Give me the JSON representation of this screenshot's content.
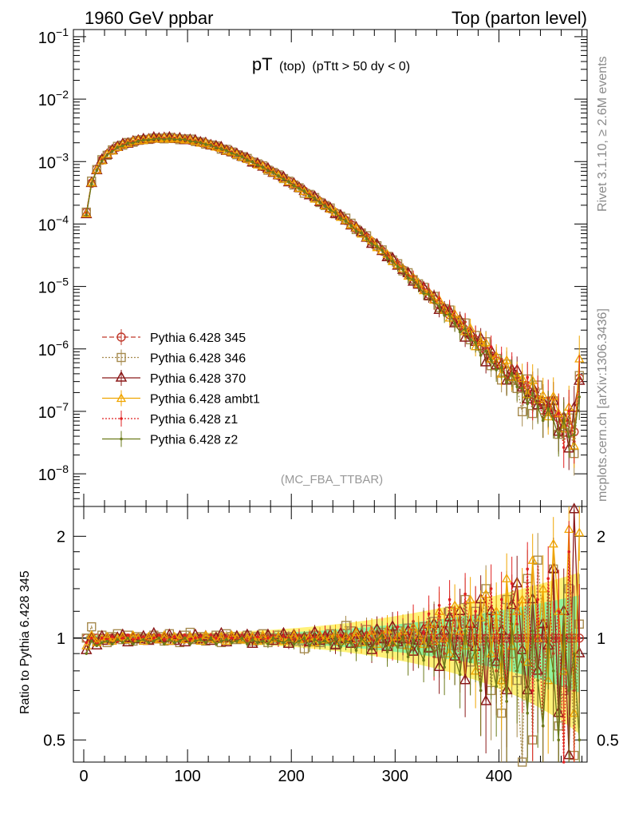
{
  "header": {
    "left": "1960 GeV ppbar",
    "right": "Top (parton level)"
  },
  "plot_title": {
    "main": "pT",
    "paren": "(top)",
    "cut": "(pTtt > 50 dy < 0)"
  },
  "watermark": "(MC_FBA_TTBAR)",
  "side_labels": {
    "top": "Rivet 3.1.10, ≥ 2.6M events",
    "bottom": "mcplots.cern.ch [arXiv:1306.3436]"
  },
  "ratio_ylabel": "Ratio to Pythia 6.428 345",
  "colors": {
    "c345": "#c0392b",
    "c346": "#a68a4e",
    "c370": "#8b1a1a",
    "ambt1": "#f0a500",
    "z1": "#e02020",
    "z2": "#6b7a1a",
    "band_green": "#7ff2a0",
    "band_yellow": "#fff27a"
  },
  "legend": [
    {
      "label": "Pythia 6.428 345",
      "color": "#c0392b",
      "marker": "circle",
      "dash": "6,3"
    },
    {
      "label": "Pythia 6.428 346",
      "color": "#a68a4e",
      "marker": "square",
      "dash": "2,2"
    },
    {
      "label": "Pythia 6.428 370",
      "color": "#8b1a1a",
      "marker": "triangle",
      "dash": ""
    },
    {
      "label": "Pythia 6.428 ambt1",
      "color": "#f0a500",
      "marker": "triangle-small",
      "dash": ""
    },
    {
      "label": "Pythia 6.428 z1",
      "color": "#e02020",
      "marker": "dot",
      "dash": "2,2"
    },
    {
      "label": "Pythia 6.428 z2",
      "color": "#6b7a1a",
      "marker": "dot",
      "dash": ""
    }
  ],
  "chart_data": [
    {
      "type": "line",
      "ylog": true,
      "xlim": [
        -10,
        485
      ],
      "ylim": [
        3e-09,
        0.13
      ],
      "y_ticks": [
        {
          "value": 1e-08,
          "base": "10",
          "exp": "−8"
        },
        {
          "value": 1e-07,
          "base": "10",
          "exp": "−7"
        },
        {
          "value": 1e-06,
          "base": "10",
          "exp": "−6"
        },
        {
          "value": 1e-05,
          "base": "10",
          "exp": "−5"
        },
        {
          "value": 0.0001,
          "base": "10",
          "exp": "−4"
        },
        {
          "value": 0.001,
          "base": "10",
          "exp": "−3"
        },
        {
          "value": 0.01,
          "base": "10",
          "exp": "−2"
        },
        {
          "value": 0.1,
          "base": "10",
          "exp": "−1"
        }
      ],
      "x": [
        2.5,
        7.5,
        12.5,
        17.5,
        22.5,
        27.5,
        32.5,
        37.5,
        42.5,
        47.5,
        52.5,
        57.5,
        62.5,
        67.5,
        72.5,
        77.5,
        82.5,
        87.5,
        92.5,
        97.5,
        102.5,
        107.5,
        112.5,
        117.5,
        122.5,
        127.5,
        132.5,
        137.5,
        142.5,
        147.5,
        152.5,
        157.5,
        162.5,
        167.5,
        172.5,
        177.5,
        182.5,
        187.5,
        192.5,
        197.5,
        202.5,
        207.5,
        212.5,
        217.5,
        222.5,
        227.5,
        232.5,
        237.5,
        242.5,
        247.5,
        252.5,
        257.5,
        262.5,
        267.5,
        272.5,
        277.5,
        282.5,
        287.5,
        292.5,
        297.5,
        302.5,
        307.5,
        312.5,
        317.5,
        322.5,
        327.5,
        332.5,
        337.5,
        342.5,
        347.5,
        352.5,
        357.5,
        362.5,
        367.5,
        372.5,
        377.5,
        382.5,
        387.5,
        392.5,
        397.5,
        402.5,
        407.5,
        412.5,
        417.5,
        422.5,
        427.5,
        432.5,
        437.5,
        442.5,
        447.5,
        452.5,
        457.5,
        462.5,
        467.5,
        472.5,
        477.5
      ],
      "series": [
        {
          "name": "Pythia 6.428 345",
          "y": [
            0.000155,
            0.00045,
            0.00076,
            0.00105,
            0.0013,
            0.00152,
            0.0017,
            0.00185,
            0.00198,
            0.00208,
            0.00217,
            0.00224,
            0.00229,
            0.00233,
            0.00235,
            0.00236,
            0.00236,
            0.00234,
            0.00231,
            0.00226,
            0.0022,
            0.00212,
            0.00203,
            0.00194,
            0.00184,
            0.00174,
            0.00163,
            0.00152,
            0.00141,
            0.0013,
            0.0012,
            0.0011,
            0.001,
            0.00091,
            0.00083,
            0.00075,
            0.00067,
            0.0006,
            0.00054,
            0.00048,
            0.00043,
            0.00038,
            0.000335,
            0.000295,
            0.00026,
            0.000228,
            0.0002,
            0.000175,
            0.000152,
            0.000132,
            0.000114,
            9.8e-05,
            8.4e-05,
            7.2e-05,
            6.1e-05,
            5.2e-05,
            4.4e-05,
            3.7e-05,
            3.1e-05,
            2.6e-05,
            2.2e-05,
            1.85e-05,
            1.55e-05,
            1.3e-05,
            1.08e-05,
            9e-06,
            7.5e-06,
            6.2e-06,
            5.1e-06,
            4.2e-06,
            3.5e-06,
            2.9e-06,
            2.4e-06,
            2e-06,
            1.65e-06,
            1.37e-06,
            1.13e-06,
            9.3e-07,
            7.7e-07,
            6.4e-07,
            5.3e-07,
            4.4e-07,
            3.7e-07,
            3.1e-07,
            2.6e-07,
            2.2e-07,
            1.85e-07,
            1.55e-07,
            1.3e-07,
            1.1e-07,
            9.2e-08,
            7.8e-08,
            6.6e-08,
            5.6e-08,
            4.7e-08,
            3.4e-07
          ]
        },
        {
          "name": "Pythia 6.428 346",
          "ratio": [
            1.0,
            1.08,
            0.98,
            1.02,
            0.97,
            1.01,
            1.03,
            0.99,
            1.02,
            0.98,
            1.01,
            1.0,
            0.99,
            1.02,
            1.01,
            0.98,
            1.03,
            1.0,
            0.97,
            1.02,
            1.04,
            0.99,
            1.01,
            0.98,
            1.0,
            1.02,
            0.97,
            1.03,
            1.01,
            0.99,
            1.0,
            1.02,
            0.98,
            1.01,
            1.03,
            0.97,
            1.0,
            1.02,
            0.99,
            1.01,
            0.98,
            1.0,
            0.93,
            1.01,
            1.02,
            0.97,
            0.99,
            1.03,
            0.96,
            1.01,
            1.09,
            1.05,
            0.97,
            1.0,
            1.06,
            0.95,
            1.02,
            1.04,
            0.98,
            1.02,
            1.05,
            0.96,
            1.07,
            0.99,
            1.02,
            1.08,
            0.94,
            1.12,
            0.9,
            1.05,
            1.2,
            0.95,
            1.1,
            1.3,
            0.85,
            1.2,
            0.98,
            1.4,
            0.7,
            1.1,
            0.6,
            1.3,
            0.9,
            0.75,
            0.38,
            1.5,
            0.5,
            1.7,
            1.1,
            0.9,
            1.6,
            0.55,
            0.7,
            1.4,
            0.45,
            1.1
          ]
        },
        {
          "name": "Pythia 6.428 370",
          "ratio": [
            0.92,
            1.0,
            0.95,
            1.01,
            0.98,
            0.99,
            1.0,
            1.02,
            0.97,
            1.0,
            0.99,
            1.01,
            0.98,
            1.03,
            0.99,
            1.0,
            1.02,
            0.98,
            1.01,
            0.97,
            1.0,
            1.02,
            0.99,
            1.01,
            0.98,
            1.0,
            1.03,
            0.97,
            1.0,
            1.01,
            0.99,
            1.02,
            0.96,
            1.01,
            0.99,
            1.02,
            0.98,
            1.0,
            1.03,
            0.96,
            1.02,
            0.99,
            1.0,
            0.97,
            1.04,
            0.98,
            1.01,
            1.02,
            0.95,
            1.03,
            0.99,
            0.96,
            1.04,
            1.02,
            0.98,
            0.92,
            1.06,
            0.99,
            0.94,
            1.08,
            0.97,
            0.99,
            1.05,
            0.91,
            0.98,
            1.06,
            0.93,
            1.1,
            0.82,
            1.05,
            1.15,
            0.88,
            1.2,
            0.75,
            1.1,
            0.94,
            1.3,
            0.65,
            1.2,
            0.85,
            1.05,
            0.7,
            1.25,
            1.45,
            0.92,
            0.7,
            1.3,
            0.8,
            1.1,
            0.95,
            1.6,
            0.6,
            1.2,
            0.45,
            2.4,
            0.9
          ]
        },
        {
          "name": "Pythia 6.428 ambt1",
          "ratio": [
            0.95,
            1.02,
            0.97,
            0.99,
            1.01,
            0.98,
            1.0,
            1.01,
            0.99,
            1.02,
            1.0,
            0.98,
            1.01,
            1.0,
            0.99,
            1.02,
            0.98,
            1.01,
            1.0,
            0.99,
            1.01,
            1.0,
            0.98,
            1.02,
            1.0,
            0.99,
            1.01,
            0.98,
            1.02,
            1.0,
            0.99,
            1.0,
            1.01,
            0.98,
            1.02,
            0.99,
            1.0,
            1.01,
            0.98,
            1.0,
            1.02,
            0.99,
            1.0,
            1.01,
            0.97,
            1.02,
            0.99,
            1.0,
            1.03,
            0.98,
            1.01,
            0.99,
            1.04,
            0.97,
            1.0,
            1.05,
            0.96,
            1.02,
            1.06,
            0.97,
            1.01,
            1.05,
            0.95,
            1.08,
            1.02,
            0.96,
            1.1,
            0.98,
            1.2,
            1.0,
            0.9,
            1.25,
            1.05,
            0.95,
            1.3,
            0.8,
            1.15,
            1.35,
            0.9,
            1.2,
            0.75,
            1.5,
            0.95,
            1.2,
            1.3,
            0.85,
            1.7,
            1.0,
            1.4,
            0.75,
            1.9,
            1.2,
            0.8,
            2.1,
            0.6,
            2.05
          ]
        },
        {
          "name": "Pythia 6.428 z1",
          "ratio": [
            0.97,
            1.0,
            0.96,
            1.0,
            0.99,
            1.01,
            0.98,
            1.0,
            1.02,
            0.99,
            1.0,
            1.01,
            0.97,
            1.0,
            1.02,
            0.99,
            1.0,
            1.01,
            0.98,
            1.02,
            0.99,
            1.0,
            1.01,
            0.97,
            1.02,
            1.0,
            0.98,
            1.01,
            1.0,
            0.99,
            1.02,
            0.98,
            1.0,
            1.01,
            0.99,
            1.0,
            1.02,
            0.97,
            1.01,
            1.0,
            0.99,
            1.02,
            0.98,
            1.0,
            1.01,
            0.99,
            1.03,
            0.97,
            1.0,
            1.02,
            0.98,
            1.03,
            0.95,
            1.01,
            1.04,
            0.99,
            0.96,
            1.05,
            1.0,
            0.95,
            1.08,
            1.02,
            0.97,
            1.12,
            0.93,
            1.04,
            1.18,
            0.88,
            1.25,
            0.9,
            1.3,
            1.05,
            0.85,
            1.35,
            0.95,
            1.2,
            0.7,
            1.1,
            1.4,
            0.8,
            1.3,
            0.65,
            1.45,
            1.1,
            0.85,
            1.6,
            0.7,
            1.3,
            0.55,
            1.5,
            0.9,
            1.2,
            0.4,
            1.8,
            0.7,
            1.0
          ]
        },
        {
          "name": "Pythia 6.428 z2",
          "ratio": [
            0.9,
            0.98,
            0.95,
            0.97,
            0.98,
            0.96,
            0.99,
            0.97,
            1.0,
            0.96,
            0.98,
            0.99,
            0.97,
            0.98,
            1.0,
            0.96,
            0.99,
            0.97,
            0.98,
            1.0,
            0.96,
            0.98,
            0.99,
            0.97,
            1.0,
            0.96,
            0.98,
            0.99,
            0.97,
            0.98,
            1.0,
            0.96,
            0.99,
            0.97,
            0.98,
            0.96,
            1.0,
            0.98,
            0.97,
            0.99,
            0.96,
            0.98,
            1.0,
            0.95,
            0.99,
            0.97,
            0.98,
            0.96,
            1.0,
            0.94,
            0.98,
            0.97,
            0.92,
            1.0,
            0.96,
            0.93,
            0.99,
            1.02,
            0.91,
            0.97,
            0.94,
            1.01,
            0.88,
            0.99,
            0.93,
            0.86,
            1.0,
            0.9,
            0.95,
            0.82,
            1.02,
            0.88,
            0.78,
            1.05,
            0.85,
            0.92,
            0.7,
            1.0,
            0.86,
            0.72,
            0.95,
            0.65,
            1.1,
            0.8,
            0.9,
            0.6,
            1.05,
            0.75,
            0.55,
            1.0,
            0.8,
            0.5,
            1.1,
            0.7,
            0.9,
            0.5
          ]
        }
      ]
    },
    {
      "type": "line",
      "ylog": true,
      "ylabel": "Ratio to Pythia 6.428 345",
      "xlim": [
        -10,
        485
      ],
      "ylim": [
        0.43,
        2.45
      ],
      "y_ticks": [
        {
          "value": 0.5,
          "label": "0.5"
        },
        {
          "value": 1,
          "label": "1"
        },
        {
          "value": 2,
          "label": "2"
        }
      ],
      "x_ticks": [
        {
          "value": 0,
          "label": "0"
        },
        {
          "value": 100,
          "label": "100"
        },
        {
          "value": 200,
          "label": "200"
        },
        {
          "value": 300,
          "label": "300"
        },
        {
          "value": 400,
          "label": "400"
        }
      ],
      "reference_line": 1
    }
  ]
}
